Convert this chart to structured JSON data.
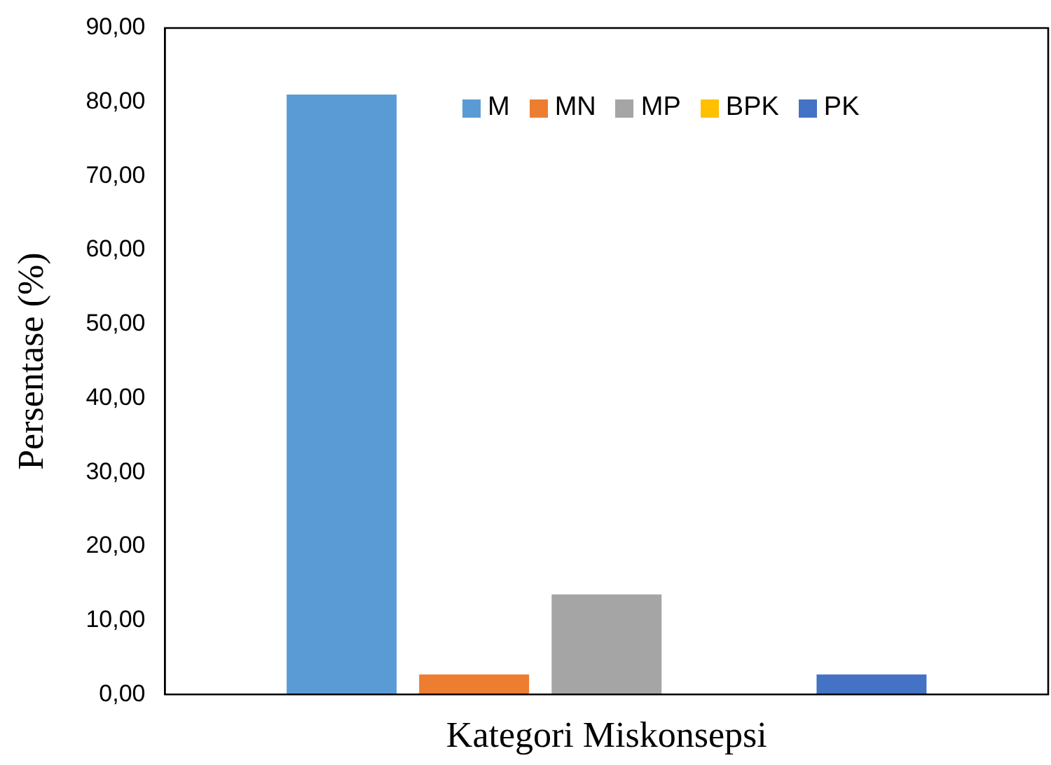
{
  "chart_data": {
    "type": "bar",
    "xlabel": "Kategori Miskonsepsi",
    "ylabel": "Persentase (%)",
    "categories": [
      null
    ],
    "series": [
      {
        "name": "M",
        "color": "#5b9bd5",
        "values": [
          81.0
        ]
      },
      {
        "name": "MN",
        "color": "#ed7d31",
        "values": [
          2.7
        ]
      },
      {
        "name": "MP",
        "color": "#a5a5a5",
        "values": [
          13.5
        ]
      },
      {
        "name": "BPK",
        "color": "#ffc000",
        "values": [
          0
        ]
      },
      {
        "name": "PK",
        "color": "#4472c4",
        "values": [
          2.7
        ]
      }
    ],
    "ylim": [
      0,
      90
    ],
    "yticks": [
      {
        "value": 0,
        "label": "0,00"
      },
      {
        "value": 10,
        "label": "10,00"
      },
      {
        "value": 20,
        "label": "20,00"
      },
      {
        "value": 30,
        "label": "30,00"
      },
      {
        "value": 40,
        "label": "40,00"
      },
      {
        "value": 50,
        "label": "50,00"
      },
      {
        "value": 60,
        "label": "60,00"
      },
      {
        "value": 70,
        "label": "70,00"
      },
      {
        "value": 80,
        "label": "80,00"
      },
      {
        "value": 90,
        "label": "90,00"
      }
    ],
    "grid": false,
    "legend": "top"
  }
}
